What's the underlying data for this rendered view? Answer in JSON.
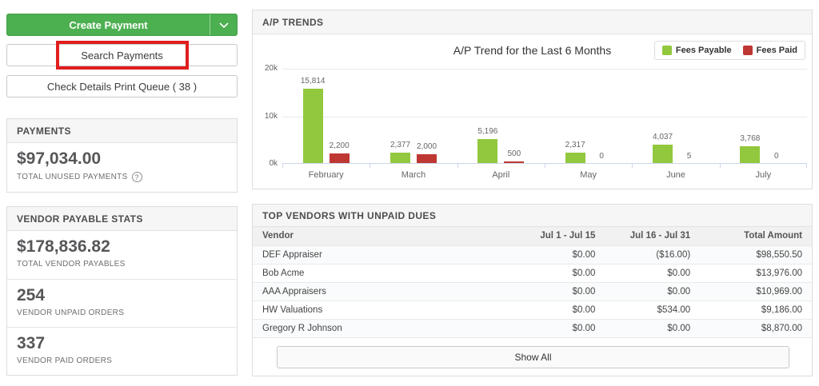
{
  "left": {
    "create_payment_label": "Create Payment",
    "search_payments_label": "Search Payments",
    "check_queue_label": "Check Details Print Queue ( 38 )",
    "payments_panel": {
      "title": "PAYMENTS",
      "value": "$97,034.00",
      "label": "TOTAL UNUSED PAYMENTS",
      "help_glyph": "?"
    },
    "vendor_stats_panel": {
      "title": "VENDOR PAYABLE STATS",
      "stats": [
        {
          "value": "$178,836.82",
          "label": "TOTAL VENDOR PAYABLES"
        },
        {
          "value": "254",
          "label": "VENDOR UNPAID ORDERS"
        },
        {
          "value": "337",
          "label": "VENDOR PAID ORDERS"
        }
      ]
    }
  },
  "trends_panel": {
    "title": "A/P TRENDS"
  },
  "chart_data": {
    "type": "bar",
    "title": "A/P Trend for the Last 6 Months",
    "categories": [
      "February",
      "March",
      "April",
      "May",
      "June",
      "July"
    ],
    "series": [
      {
        "name": "Fees Payable",
        "color": "#92c83e",
        "values": [
          15814,
          2377,
          5196,
          2317,
          4037,
          3768
        ],
        "labels": [
          "15,814",
          "2,377",
          "5,196",
          "2,317",
          "4,037",
          "3,768"
        ]
      },
      {
        "name": "Fees Paid",
        "color": "#bf3733",
        "values": [
          2200,
          2000,
          500,
          0,
          5,
          0
        ],
        "labels": [
          "2,200",
          "2,000",
          "500",
          "0",
          "5",
          "0"
        ]
      }
    ],
    "xlabel": "",
    "ylabel": "",
    "ylim": [
      0,
      20000
    ],
    "yticks": [
      {
        "label": "0k",
        "value": 0
      },
      {
        "label": "10k",
        "value": 10000
      },
      {
        "label": "20k",
        "value": 20000
      }
    ],
    "grid": true,
    "legend_position": "top-right"
  },
  "vendors_panel": {
    "title": "TOP VENDORS WITH UNPAID DUES",
    "columns": [
      "Vendor",
      "Jul 1 - Jul 15",
      "Jul 16 - Jul 31",
      "Total Amount"
    ],
    "rows": [
      [
        "DEF Appraiser",
        "$0.00",
        "($16.00)",
        "$98,550.50"
      ],
      [
        "Bob Acme",
        "$0.00",
        "$0.00",
        "$13,976.00"
      ],
      [
        "AAA Appraisers",
        "$0.00",
        "$0.00",
        "$10,969.00"
      ],
      [
        "HW Valuations",
        "$0.00",
        "$534.00",
        "$9,186.00"
      ],
      [
        "Gregory R Johnson",
        "$0.00",
        "$0.00",
        "$8,870.00"
      ]
    ],
    "show_all_label": "Show All"
  },
  "colors": {
    "primary_green": "#4caf50",
    "bar_green": "#92c83e",
    "bar_red": "#bf3733",
    "annotation_red": "#e01e1e"
  }
}
